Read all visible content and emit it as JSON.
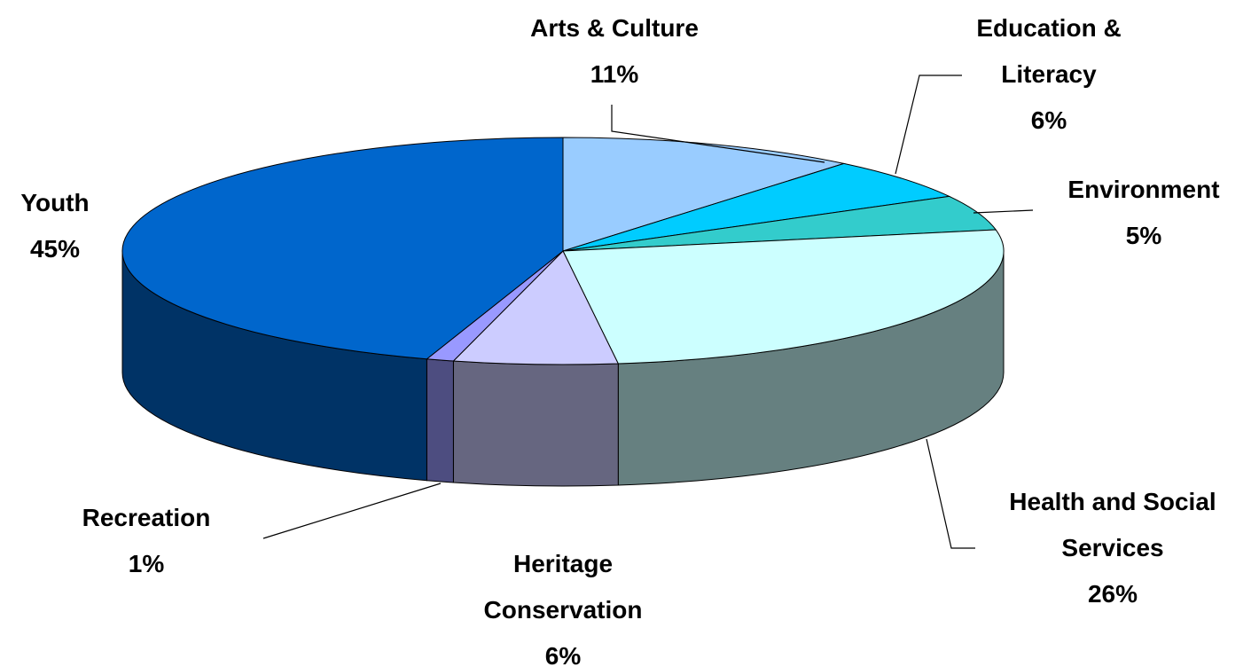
{
  "chart_data": {
    "type": "pie",
    "categories": [
      "Arts & Culture",
      "Education & Literacy",
      "Environment",
      "Health and Social Services",
      "Heritage Conservation",
      "Recreation",
      "Youth"
    ],
    "values": [
      11,
      6,
      5,
      26,
      6,
      1,
      45
    ],
    "value_labels": [
      "11%",
      "6%",
      "5%",
      "26%",
      "6%",
      "1%",
      "45%"
    ],
    "colors": [
      "#99ccff",
      "#00ccff",
      "#33cccc",
      "#ccffff",
      "#ccccff",
      "#9999ff",
      "#0066cc"
    ]
  }
}
